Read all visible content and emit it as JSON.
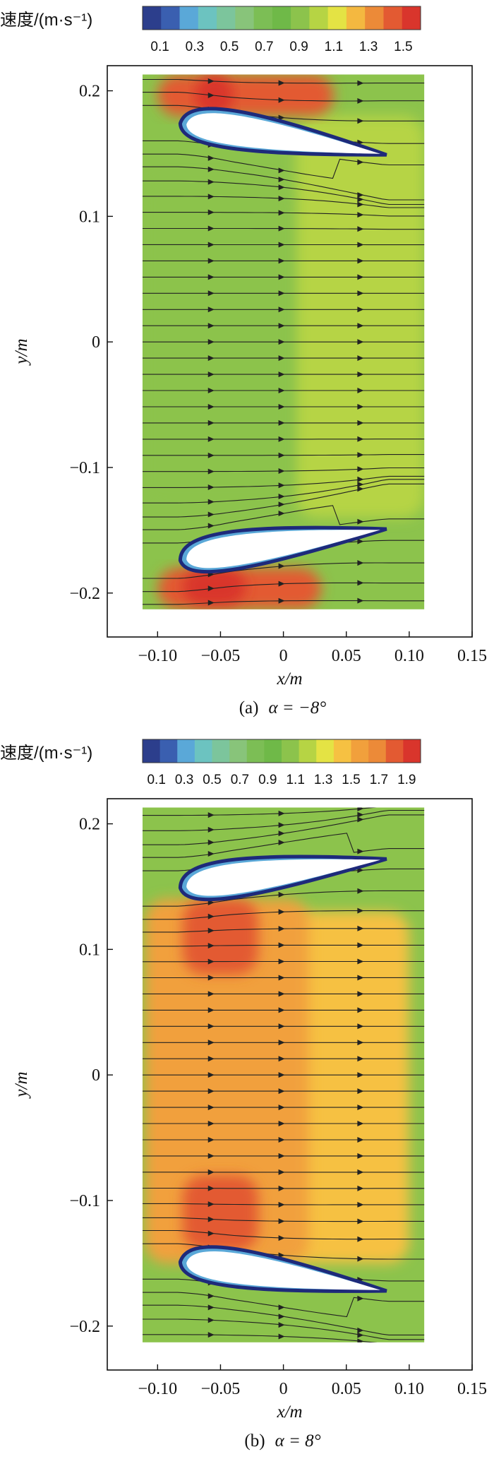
{
  "chart_data": [
    {
      "type": "heatmap",
      "panel": "a",
      "caption_prefix": "(a)",
      "caption_alpha": "α = −8°",
      "colorbar": {
        "title": "速度/(m·s⁻¹)",
        "tick_labels": [
          "0.1",
          "0.3",
          "0.5",
          "0.7",
          "0.9",
          "1.1",
          "1.3",
          "1.5"
        ],
        "range": [
          0,
          1.6
        ],
        "colors": [
          "#2c3e8c",
          "#3a5fb0",
          "#5aa8d8",
          "#6cc3c0",
          "#7cc59c",
          "#88c47a",
          "#7cbe55",
          "#6fb948",
          "#8cc34c",
          "#b6d444",
          "#e4e344",
          "#f4b840",
          "#ec8a38",
          "#e35a32",
          "#d9352c"
        ]
      },
      "xaxis": {
        "label": "x/m",
        "ticks": [
          "−0.10",
          "−0.05",
          "0",
          "0.05",
          "0.10",
          "0.15"
        ],
        "range": [
          -0.14,
          0.15
        ]
      },
      "yaxis": {
        "label": "y/m",
        "ticks": [
          "0.2",
          "0.1",
          "0",
          "−0.1",
          "−0.2"
        ],
        "range": [
          -0.235,
          0.22
        ]
      },
      "domain": {
        "x": [
          -0.112,
          0.112
        ],
        "y": [
          -0.213,
          0.213
        ]
      },
      "airfoils": [
        {
          "leading_edge": [
            -0.082,
            0.174
          ],
          "trailing_edge": [
            0.082,
            0.149
          ]
        },
        {
          "leading_edge": [
            -0.082,
            -0.174
          ],
          "trailing_edge": [
            0.082,
            -0.149
          ]
        }
      ],
      "velocity_regions": [
        {
          "region": "background",
          "x": [
            -0.112,
            0.112
          ],
          "y": [
            -0.213,
            0.213
          ],
          "value": 0.95
        },
        {
          "region": "right half",
          "x": [
            0.01,
            0.112
          ],
          "y": [
            -0.14,
            0.18
          ],
          "value": 1.05
        },
        {
          "region": "left core",
          "x": [
            -0.112,
            0.005
          ],
          "y": [
            -0.13,
            0.13
          ],
          "value": 0.88
        },
        {
          "region": "above upper airfoil",
          "x": [
            -0.1,
            0.04
          ],
          "y": [
            0.18,
            0.213
          ],
          "value": 1.4
        },
        {
          "region": "upper suction peak",
          "x": [
            -0.07,
            -0.04
          ],
          "y": [
            0.18,
            0.213
          ],
          "value": 1.55
        },
        {
          "region": "below lower airfoil",
          "x": [
            -0.1,
            0.03
          ],
          "y": [
            -0.213,
            -0.18
          ],
          "value": 1.45
        },
        {
          "region": "lower suction peak",
          "x": [
            -0.08,
            -0.03
          ],
          "y": [
            -0.21,
            -0.18
          ],
          "value": 1.55
        }
      ],
      "streamline_count": 33
    },
    {
      "type": "heatmap",
      "panel": "b",
      "caption_prefix": "(b)",
      "caption_alpha": "α = 8°",
      "colorbar": {
        "title": "速度/(m·s⁻¹)",
        "tick_labels": [
          "0.1",
          "0.3",
          "0.5",
          "0.7",
          "0.9",
          "1.1",
          "1.3",
          "1.5",
          "1.7",
          "1.9"
        ],
        "range": [
          0,
          2.0
        ],
        "colors": [
          "#2c3e8c",
          "#3a5fb0",
          "#5aa8d8",
          "#6cc3c0",
          "#7cc59c",
          "#88c47a",
          "#7cbe55",
          "#6fb948",
          "#8cc34c",
          "#b6d444",
          "#e4e344",
          "#f6c142",
          "#f1a03c",
          "#ec8a38",
          "#e35a32",
          "#d9352c"
        ]
      },
      "xaxis": {
        "label": "x/m",
        "ticks": [
          "−0.10",
          "−0.05",
          "0",
          "0.05",
          "0.10",
          "0.15"
        ],
        "range": [
          -0.14,
          0.15
        ]
      },
      "yaxis": {
        "label": "y/m",
        "ticks": [
          "0.2",
          "0.1",
          "0",
          "−0.1",
          "−0.2"
        ],
        "range": [
          -0.235,
          0.22
        ]
      },
      "domain": {
        "x": [
          -0.112,
          0.112
        ],
        "y": [
          -0.213,
          0.213
        ]
      },
      "airfoils": [
        {
          "leading_edge": [
            -0.082,
            0.149
          ],
          "trailing_edge": [
            0.082,
            0.172
          ]
        },
        {
          "leading_edge": [
            -0.082,
            -0.149
          ],
          "trailing_edge": [
            0.082,
            -0.172
          ]
        }
      ],
      "velocity_regions": [
        {
          "region": "background",
          "x": [
            -0.112,
            0.112
          ],
          "y": [
            -0.213,
            0.213
          ],
          "value": 1.1
        },
        {
          "region": "right half",
          "x": [
            0.0,
            0.1
          ],
          "y": [
            -0.15,
            0.13
          ],
          "value": 1.4
        },
        {
          "region": "central core",
          "x": [
            -0.11,
            0.02
          ],
          "y": [
            -0.15,
            0.14
          ],
          "value": 1.55
        },
        {
          "region": "below upper airfoil",
          "x": [
            -0.08,
            -0.02
          ],
          "y": [
            0.08,
            0.14
          ],
          "value": 1.75
        },
        {
          "region": "above lower airfoil",
          "x": [
            -0.08,
            -0.02
          ],
          "y": [
            -0.14,
            -0.08
          ],
          "value": 1.75
        }
      ],
      "streamline_count": 33
    }
  ]
}
